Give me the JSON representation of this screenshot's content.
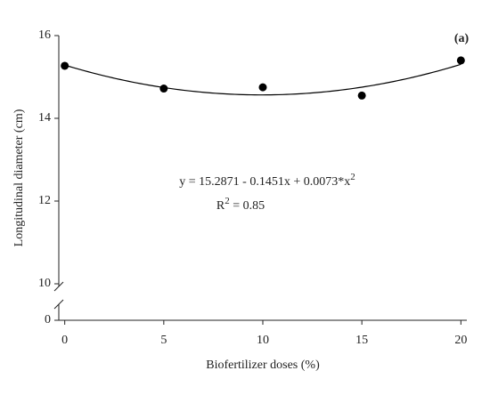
{
  "chart_data": {
    "type": "scatter",
    "panel_label": "(a)",
    "x_label": "Biofertilizer doses (%)",
    "y_label": "Longitudinal diameter (cm)",
    "x": [
      0,
      5,
      10,
      15,
      20
    ],
    "values": [
      15.27,
      14.72,
      14.75,
      14.55,
      15.4
    ],
    "color": "#000000",
    "xlim": [
      -0.3,
      20.3
    ],
    "xticks": [
      0,
      5,
      10,
      15,
      20
    ],
    "ylim": [
      0,
      16
    ],
    "yticks": [
      0,
      10,
      12,
      14,
      16
    ],
    "ybreak": [
      0,
      10
    ],
    "fit": {
      "coefficients": [
        15.2871,
        -0.1451,
        0.0073
      ],
      "color": "#000000"
    },
    "equation": [
      "y = 15.2871 - 0.1451x + 0.0073*x",
      "2"
    ],
    "r_squared": [
      "R",
      "2",
      " = 0.85"
    ]
  }
}
